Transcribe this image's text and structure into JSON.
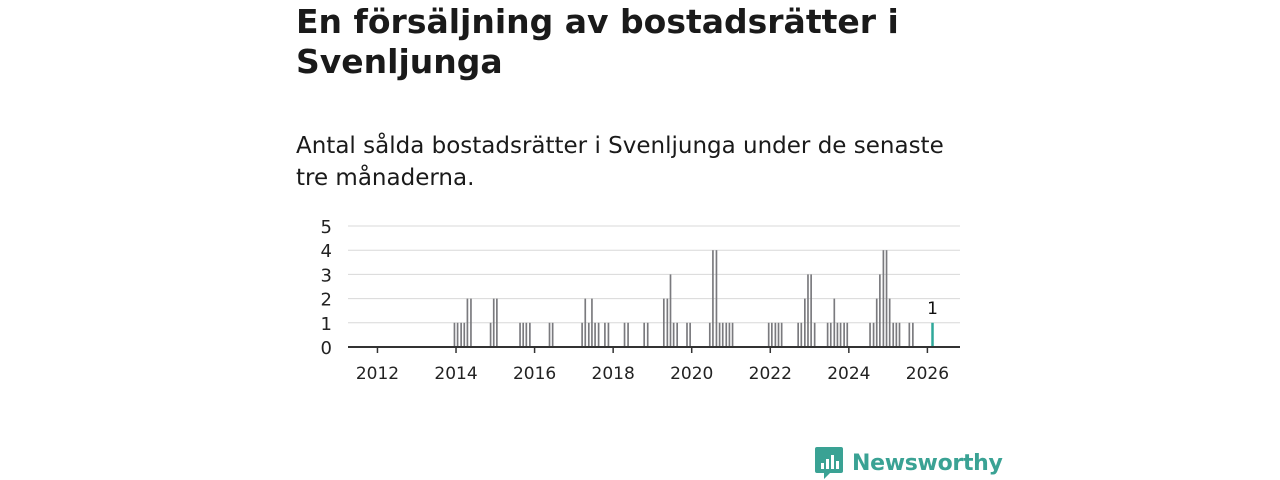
{
  "title": "En försäljning av bostadsrätter i Svenljunga",
  "subtitle": "Antal sålda bostadsrätter i Svenljunga under de senaste tre månaderna.",
  "brand": {
    "name": "Newsworthy",
    "color": "#3aa294"
  },
  "colors": {
    "bar": "#7a7a7e",
    "highlight": "#2fa89a",
    "grid": "#d8d8d8",
    "axis": "#333333"
  },
  "chart_data": {
    "type": "bar",
    "title": "",
    "xlabel": "",
    "ylabel": "",
    "ylim": [
      0,
      5
    ],
    "yticks": [
      0,
      1,
      2,
      3,
      4,
      5
    ],
    "xlim": [
      2011.25,
      2026.83
    ],
    "xticks": [
      2012,
      2014,
      2016,
      2018,
      2020,
      2022,
      2024,
      2026
    ],
    "bar_period": "month",
    "x": [
      2013.96,
      2014.04,
      2014.13,
      2014.21,
      2014.29,
      2014.38,
      2014.88,
      2014.96,
      2015.04,
      2015.63,
      2015.71,
      2015.79,
      2015.88,
      2016.38,
      2016.46,
      2017.21,
      2017.29,
      2017.38,
      2017.46,
      2017.54,
      2017.63,
      2017.79,
      2017.88,
      2018.29,
      2018.38,
      2018.79,
      2018.88,
      2019.29,
      2019.38,
      2019.46,
      2019.54,
      2019.63,
      2019.88,
      2019.96,
      2020.46,
      2020.54,
      2020.63,
      2020.71,
      2020.79,
      2020.88,
      2020.96,
      2021.04,
      2021.96,
      2022.04,
      2022.13,
      2022.21,
      2022.29,
      2022.71,
      2022.79,
      2022.88,
      2022.96,
      2023.04,
      2023.13,
      2023.46,
      2023.54,
      2023.63,
      2023.71,
      2023.79,
      2023.88,
      2023.96,
      2024.54,
      2024.63,
      2024.71,
      2024.79,
      2024.88,
      2024.96,
      2025.04,
      2025.13,
      2025.21,
      2025.29,
      2025.54,
      2025.63,
      2026.13
    ],
    "values": [
      1,
      1,
      1,
      1,
      2,
      2,
      1,
      2,
      2,
      1,
      1,
      1,
      1,
      1,
      1,
      1,
      2,
      1,
      2,
      1,
      1,
      1,
      1,
      1,
      1,
      1,
      1,
      2,
      2,
      3,
      1,
      1,
      1,
      1,
      1,
      4,
      4,
      1,
      1,
      1,
      1,
      1,
      1,
      1,
      1,
      1,
      1,
      1,
      1,
      2,
      3,
      3,
      1,
      1,
      1,
      2,
      1,
      1,
      1,
      1,
      1,
      1,
      2,
      3,
      4,
      4,
      2,
      1,
      1,
      1,
      1,
      1,
      1
    ],
    "highlight_index": 72,
    "annotation": "1"
  }
}
